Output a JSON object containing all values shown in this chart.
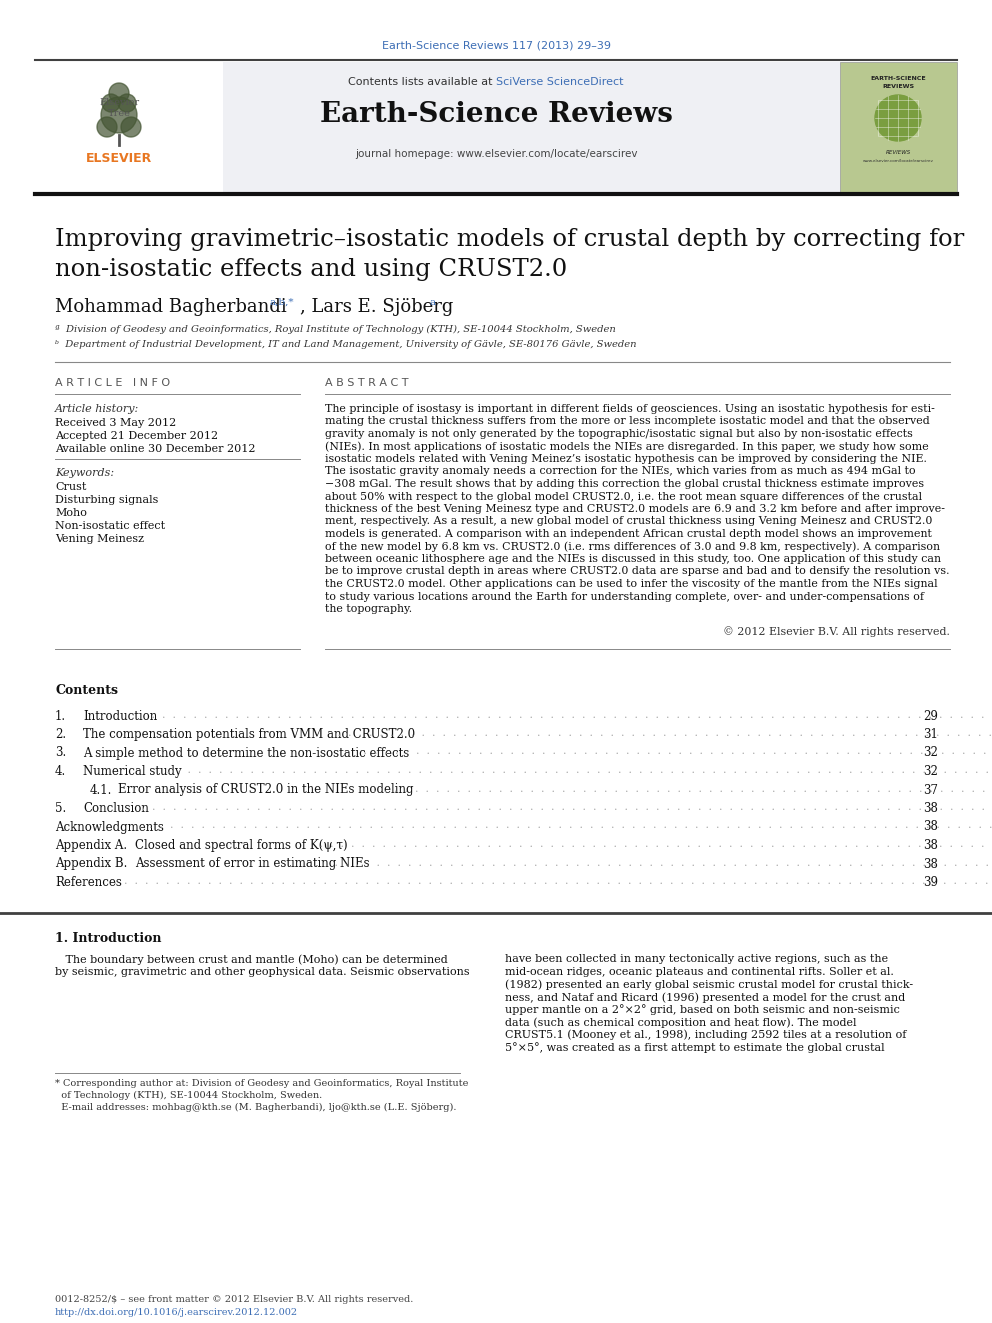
{
  "journal_ref": "Earth-Science Reviews 117 (2013) 29–39",
  "journal_name": "Earth-Science Reviews",
  "contents_text": "Contents lists available at",
  "sciverse_text": "SciVerse ScienceDirect",
  "journal_homepage": "journal homepage: www.elsevier.com/locate/earscirev",
  "title_line1": "Improving gravimetric–isostatic models of crustal depth by correcting for",
  "title_line2": "non-isostatic effects and using CRUST2.0",
  "authors": "Mohammad Bagherbandi",
  "author_superscript": "a,b,*",
  "author2": ", Lars E. Sjöberg",
  "author2_superscript": "a",
  "affiliation_a": "ª  Division of Geodesy and Geoinformatics, Royal Institute of Technology (KTH), SE-10044 Stockholm, Sweden",
  "affiliation_b": "ᵇ  Department of Industrial Development, IT and Land Management, University of Gävle, SE-80176 Gävle, Sweden",
  "article_info_header": "A R T I C L E   I N F O",
  "abstract_header": "A B S T R A C T",
  "article_history_label": "Article history:",
  "received": "Received 3 May 2012",
  "accepted": "Accepted 21 December 2012",
  "available": "Available online 30 December 2012",
  "keywords_label": "Keywords:",
  "keywords": [
    "Crust",
    "Disturbing signals",
    "Moho",
    "Non-isostatic effect",
    "Vening Meinesz"
  ],
  "abstract_lines": [
    "The principle of isostasy is important in different fields of geosciences. Using an isostatic hypothesis for esti-",
    "mating the crustal thickness suffers from the more or less incomplete isostatic model and that the observed",
    "gravity anomaly is not only generated by the topographic/isostatic signal but also by non-isostatic effects",
    "(NIEs). In most applications of isostatic models the NIEs are disregarded. In this paper, we study how some",
    "isostatic models related with Vening Meinez’s isostatic hypothesis can be improved by considering the NIE.",
    "The isostatic gravity anomaly needs a correction for the NIEs, which varies from as much as 494 mGal to",
    "−308 mGal. The result shows that by adding this correction the global crustal thickness estimate improves",
    "about 50% with respect to the global model CRUST2.0, i.e. the root mean square differences of the crustal",
    "thickness of the best Vening Meinesz type and CRUST2.0 models are 6.9 and 3.2 km before and after improve-",
    "ment, respectively. As a result, a new global model of crustal thickness using Vening Meinesz and CRUST2.0",
    "models is generated. A comparison with an independent African crustal depth model shows an improvement",
    "of the new model by 6.8 km vs. CRUST2.0 (i.e. rms differences of 3.0 and 9.8 km, respectively). A comparison",
    "between oceanic lithosphere age and the NIEs is discussed in this study, too. One application of this study can",
    "be to improve crustal depth in areas where CRUST2.0 data are sparse and bad and to densify the resolution vs.",
    "the CRUST2.0 model. Other applications can be used to infer the viscosity of the mantle from the NIEs signal",
    "to study various locations around the Earth for understanding complete, over- and under-compensations of",
    "the topography."
  ],
  "copyright": "© 2012 Elsevier B.V. All rights reserved.",
  "contents_header": "Contents",
  "toc": [
    {
      "num": "1.",
      "title": "Introduction",
      "page": "29",
      "indent": false
    },
    {
      "num": "2.",
      "title": "The compensation potentials from VMM and CRUST2.0",
      "page": "31",
      "indent": false
    },
    {
      "num": "3.",
      "title": "A simple method to determine the non-isostatic effects",
      "page": "32",
      "indent": false
    },
    {
      "num": "4.",
      "title": "Numerical study",
      "page": "32",
      "indent": false
    },
    {
      "num": "4.1.",
      "title": "Error analysis of CRUST2.0 in the NIEs modeling",
      "page": "37",
      "indent": true
    },
    {
      "num": "5.",
      "title": "Conclusion",
      "page": "38",
      "indent": false
    },
    {
      "num": "",
      "title": "Acknowledgments",
      "page": "38",
      "indent": false
    },
    {
      "num": "Appendix A.",
      "title": "Closed and spectral forms of K(ψ,τ)",
      "page": "38",
      "indent": false
    },
    {
      "num": "Appendix B.",
      "title": "Assessment of error in estimating NIEs",
      "page": "38",
      "indent": false
    },
    {
      "num": "",
      "title": "References",
      "page": "39",
      "indent": false
    }
  ],
  "intro_header": "1. Introduction",
  "intro_col1_lines": [
    "   The boundary between crust and mantle (Moho) can be determined",
    "by seismic, gravimetric and other geophysical data. Seismic observations"
  ],
  "intro_col2_lines": [
    "have been collected in many tectonically active regions, such as the",
    "mid-ocean ridges, oceanic plateaus and continental rifts. Soller et al.",
    "(1982) presented an early global seismic crustal model for crustal thick-",
    "ness, and Nataf and Ricard (1996) presented a model for the crust and",
    "upper mantle on a 2°×2° grid, based on both seismic and non-seismic",
    "data (such as chemical composition and heat flow). The model",
    "CRUST5.1 (Mooney et al., 1998), including 2592 tiles at a resolution of",
    "5°×5°, was created as a first attempt to estimate the global crustal"
  ],
  "footnote_star": "* Corresponding author at: Division of Geodesy and Geoinformatics, Royal Institute",
  "footnote_star2": "  of Technology (KTH), SE-10044 Stockholm, Sweden.",
  "footnote_email": "  E-mail addresses: mohbag@kth.se (M. Bagherbandi), ljo@kth.se (L.E. Sjöberg).",
  "footer_issn": "0012-8252/$ – see front matter © 2012 Elsevier B.V. All rights reserved.",
  "footer_doi": "http://dx.doi.org/10.1016/j.earscirev.2012.12.002",
  "blue_link_color": "#3d6eb5",
  "journal_ref_color": "#3d6eb5",
  "orange_elsevier": "#e87722",
  "light_gray": "#eff0f4"
}
